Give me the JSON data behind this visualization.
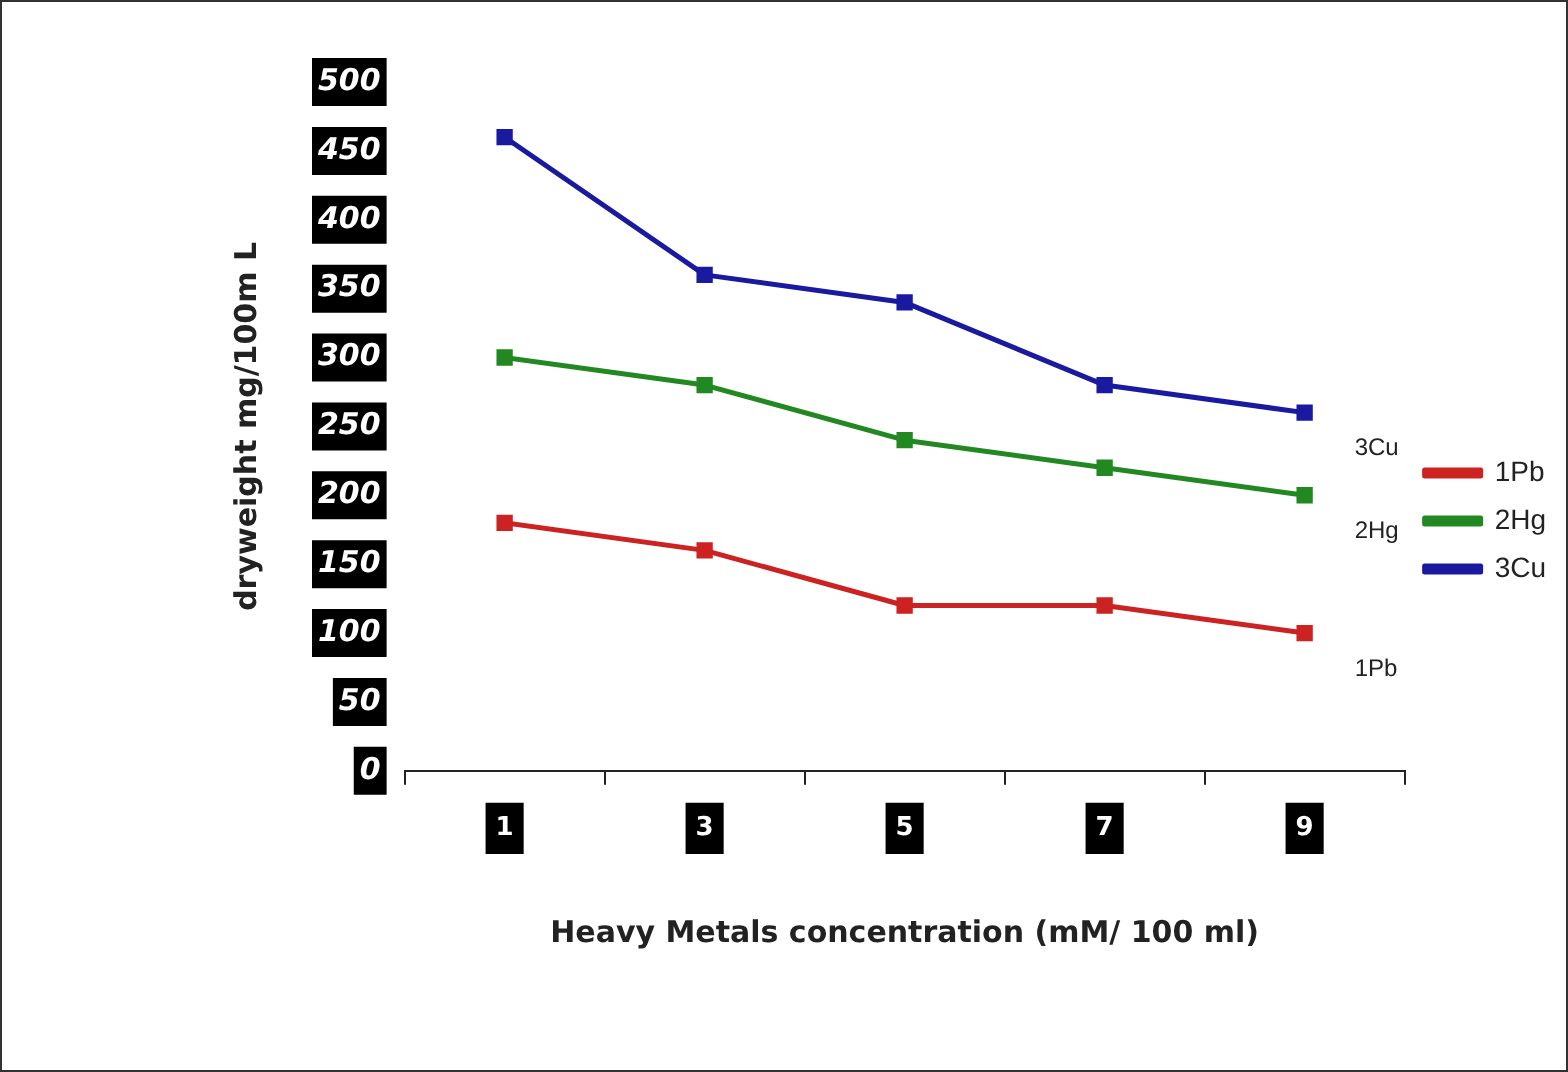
{
  "chart_data": {
    "type": "line",
    "xlabel": "Heavy Metals concentration (mM/ 100 ml)",
    "ylabel": "dryweight mg/100m L",
    "categories": [
      "1",
      "3",
      "5",
      "7",
      "9"
    ],
    "series": [
      {
        "name": "1Pb",
        "color": "#cc2222",
        "values": [
          180,
          160,
          120,
          120,
          100
        ]
      },
      {
        "name": "2Hg",
        "color": "#228822",
        "values": [
          300,
          280,
          240,
          220,
          200
        ]
      },
      {
        "name": "3Cu",
        "color": "#1a1aa0",
        "values": [
          460,
          360,
          340,
          280,
          260
        ]
      }
    ],
    "ylim": [
      0,
      500
    ],
    "yticks": [
      0,
      50,
      100,
      150,
      200,
      250,
      300,
      350,
      400,
      450,
      500
    ],
    "grid": false,
    "legend": "right",
    "marker": "square",
    "line_style": "solid"
  }
}
